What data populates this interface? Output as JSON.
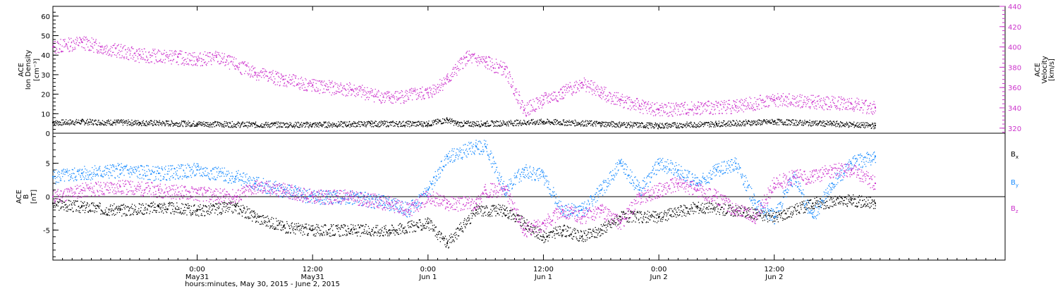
{
  "colors": {
    "density": "#000000",
    "velocity": "#cc33cc",
    "bx": "#000000",
    "by": "#1a8cff",
    "bz": "#cc33cc",
    "axis": "#000000"
  },
  "chart_data": [
    {
      "type": "scatter",
      "panel": "top",
      "ylabel_left": [
        "ACE",
        "Ion Density",
        "[cm⁻³]"
      ],
      "ylabel_right": [
        "ACE",
        "Velocity",
        "[km/s]"
      ],
      "ylim_left": [
        0,
        65
      ],
      "yticks_left": [
        "0",
        "10",
        "20",
        "30",
        "40",
        "50",
        "60"
      ],
      "ylim_right": [
        315,
        440
      ],
      "yticks_right": [
        "320",
        "340",
        "360",
        "380",
        "400",
        "420",
        "440"
      ],
      "x_hours_from_May30_00": [
        9,
        96
      ],
      "series": [
        {
          "axis": "left",
          "color_key": "density",
          "x": [
            9,
            12,
            18,
            24,
            30,
            36,
            42,
            48,
            50,
            51,
            54,
            60,
            66,
            72,
            78,
            84,
            90,
            94.5
          ],
          "y": [
            5.5,
            6,
            5.5,
            5,
            4.5,
            4.5,
            5,
            5,
            7,
            5,
            5,
            6,
            5,
            4,
            5,
            6,
            5,
            4
          ]
        },
        {
          "axis": "right",
          "color_key": "velocity",
          "x": [
            9,
            12,
            14,
            18,
            22,
            24,
            26,
            30,
            33,
            36,
            40,
            44,
            48,
            50,
            52,
            54,
            56,
            58,
            60,
            62,
            64,
            66,
            68,
            70,
            72,
            76,
            80,
            84,
            88,
            92,
            94.5
          ],
          "y": [
            400,
            405,
            400,
            392,
            390,
            388,
            390,
            375,
            368,
            362,
            358,
            350,
            355,
            368,
            390,
            385,
            378,
            338,
            348,
            355,
            365,
            355,
            348,
            342,
            338,
            340,
            342,
            348,
            346,
            344,
            340
          ]
        }
      ]
    },
    {
      "type": "scatter",
      "panel": "bottom",
      "ylabel_left": [
        "ACE",
        "B",
        "[nT]"
      ],
      "ylim": [
        -9.5,
        9.5
      ],
      "yticks": [
        "-5",
        "0",
        "5"
      ],
      "legend": [
        "Bx",
        "By",
        "Bz"
      ],
      "legend_placement": "right",
      "x_hours_from_May30_00": [
        9,
        96
      ],
      "series": [
        {
          "color_key": "bx",
          "x": [
            9,
            12,
            16,
            20,
            24,
            28,
            30,
            33,
            36,
            40,
            44,
            48,
            50,
            53,
            56,
            60,
            62,
            64,
            66,
            68,
            72,
            76,
            80,
            84,
            88,
            92,
            94.5
          ],
          "y": [
            -1,
            -1.5,
            -2,
            -1.5,
            -2,
            -1.5,
            -3,
            -4.5,
            -5,
            -5,
            -5,
            -4,
            -7,
            -2,
            -2,
            -6,
            -5,
            -6,
            -5,
            -3,
            -3,
            -1.5,
            -2,
            -3,
            -1,
            -0.5,
            -1
          ]
        },
        {
          "color_key": "by",
          "x": [
            9,
            12,
            16,
            20,
            24,
            28,
            30,
            33,
            36,
            40,
            44,
            46,
            48,
            50,
            53,
            54,
            56,
            58,
            60,
            62,
            64,
            66,
            68,
            70,
            72,
            74,
            76,
            78,
            80,
            82,
            84,
            86,
            88,
            90,
            92,
            94.5
          ],
          "y": [
            3,
            3.5,
            4,
            3.5,
            4,
            3,
            2,
            1,
            0,
            0,
            -1,
            -2,
            1,
            6,
            7.5,
            7.5,
            1,
            4,
            3,
            -2,
            -2,
            1,
            5,
            1,
            5,
            4,
            2,
            4,
            5,
            -1,
            -3,
            3,
            -3,
            2,
            5,
            6
          ]
        },
        {
          "color_key": "bz",
          "x": [
            9,
            12,
            16,
            20,
            24,
            28,
            30,
            33,
            36,
            40,
            44,
            46,
            48,
            50,
            53,
            54,
            56,
            58,
            60,
            62,
            64,
            66,
            68,
            70,
            72,
            74,
            76,
            78,
            80,
            82,
            84,
            86,
            88,
            90,
            92,
            94.5
          ],
          "y": [
            0,
            1,
            1.5,
            1,
            0.5,
            0,
            1.5,
            1,
            0,
            0,
            -1,
            -2,
            0,
            -1,
            -1,
            1,
            1,
            -5,
            -4,
            -2,
            -3,
            -2,
            -4,
            0,
            1,
            2,
            1,
            0,
            -2,
            -3,
            2,
            3,
            3,
            4,
            4,
            2
          ]
        }
      ]
    }
  ],
  "axis": {
    "xlabel": "hours:minutes, May 30, 2015 - June  2, 2015",
    "xlim_hours": [
      9,
      108
    ],
    "xticks": [
      {
        "hour": 24,
        "time": "0:00",
        "day": "May31"
      },
      {
        "hour": 36,
        "time": "12:00",
        "day": "May31"
      },
      {
        "hour": 48,
        "time": "0:00",
        "day": "Jun 1"
      },
      {
        "hour": 60,
        "time": "12:00",
        "day": "Jun 1"
      },
      {
        "hour": 72,
        "time": "0:00",
        "day": "Jun 2"
      },
      {
        "hour": 84,
        "time": "12:00",
        "day": "Jun 2"
      }
    ]
  },
  "legend_labels": {
    "bx_base": "B",
    "bx_sub": "x",
    "by_base": "B",
    "by_sub": "y",
    "bz_base": "B",
    "bz_sub": "z"
  }
}
